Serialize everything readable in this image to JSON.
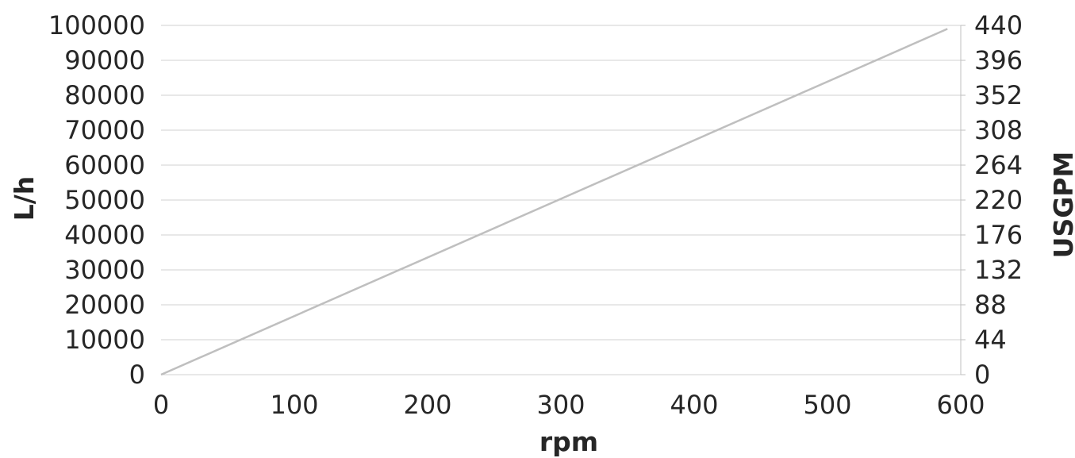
{
  "chart_data": {
    "type": "line",
    "title": "",
    "xlabel": "rpm",
    "ylabel": "L/h",
    "y2label": "USGPM",
    "xlim": [
      0,
      600
    ],
    "ylim": [
      0,
      100000
    ],
    "y2lim": [
      0,
      440
    ],
    "x_ticks": [
      "0",
      "100",
      "200",
      "300",
      "400",
      "500",
      "600"
    ],
    "y_ticks": [
      "0",
      "10000",
      "20000",
      "30000",
      "40000",
      "50000",
      "60000",
      "70000",
      "80000",
      "90000",
      "100000"
    ],
    "y2_ticks": [
      "0",
      "44",
      "88",
      "132",
      "176",
      "220",
      "264",
      "308",
      "352",
      "396",
      "440"
    ],
    "grid": true,
    "legend": "none",
    "series": [
      {
        "x": [
          0,
          590
        ],
        "y": [
          0,
          99000
        ],
        "color": "#bfbfbf"
      }
    ],
    "colors": {
      "grid": "#d0d0d0",
      "axis": "#bfbfbf",
      "text": "#262626"
    }
  }
}
